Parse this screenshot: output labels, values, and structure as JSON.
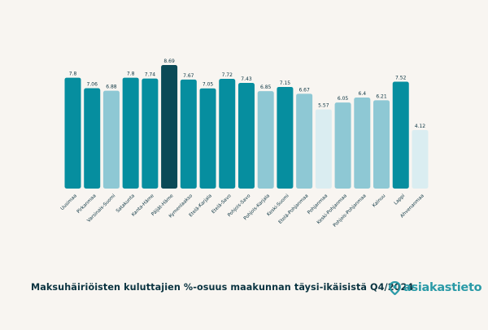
{
  "caption": "Maksuhäiriöisten kuluttajien %-osuus maakunnan täysi-ikäisistä Q4/2024",
  "logo_text": "asiakastieto",
  "colors": {
    "background": "#f8f5f1",
    "highest": "#0a4a57",
    "high": "#068e9f",
    "mid": "#8ec8d4",
    "low": "#daedf1",
    "text": "#0a3340",
    "brand": "#2a9aa7"
  },
  "chart_data": {
    "type": "bar",
    "title": "Maksuhäiriöisten kuluttajien %-osuus maakunnan täysi-ikäisistä Q4/2024",
    "xlabel": "",
    "ylabel": "",
    "grid": false,
    "legend": "none",
    "ylim": [
      0,
      8.69
    ],
    "categories": [
      "Uusimaa",
      "Pirkanmaa",
      "Varsinais-Suomi",
      "Satakunta",
      "Kanta-Häme",
      "Päijät-Häme",
      "Kymenlaakso",
      "Etelä-Karjala",
      "Etelä-Savo",
      "Pohjois-Savo",
      "Pohjois-Karjala",
      "Keski-Suomi",
      "Etelä-Pohjanmaa",
      "Pohjanmaa",
      "Keski-Pohjanmaa",
      "Pohjois-Pohjanmaa",
      "Kainuu",
      "Lappi",
      "Ahvenanmaa"
    ],
    "values": [
      7.8,
      7.06,
      6.88,
      7.8,
      7.74,
      8.69,
      7.67,
      7.05,
      7.72,
      7.43,
      6.85,
      7.15,
      6.67,
      5.57,
      6.05,
      6.4,
      6.21,
      7.52,
      4.12
    ],
    "value_labels": [
      "7.8",
      "7.06",
      "6.88",
      "7.8",
      "7.74",
      "8.69",
      "7.67",
      "7.05",
      "7.72",
      "7.43",
      "6.85",
      "7.15",
      "6.67",
      "5.57",
      "6.05",
      "6.4",
      "6.21",
      "7.52",
      "4.12"
    ],
    "bar_colors": [
      "#068e9f",
      "#068e9f",
      "#8ec8d4",
      "#068e9f",
      "#068e9f",
      "#0a4a57",
      "#068e9f",
      "#068e9f",
      "#068e9f",
      "#068e9f",
      "#8ec8d4",
      "#068e9f",
      "#8ec8d4",
      "#daedf1",
      "#8ec8d4",
      "#8ec8d4",
      "#8ec8d4",
      "#068e9f",
      "#daedf1"
    ]
  }
}
